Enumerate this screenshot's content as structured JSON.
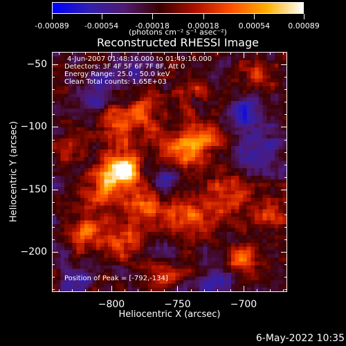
{
  "colorbar": {
    "tick_labels": [
      "-0.00089",
      "-0.00054",
      "-0.00018",
      "0.00018",
      "0.00054",
      "0.00089"
    ],
    "units_label": "(photons cm⁻² s⁻¹ asec⁻²)",
    "colors": [
      "#0000ff",
      "#3020b0",
      "#501a70",
      "#3a0000",
      "#b01000",
      "#ff5000",
      "#ffb000",
      "#ffffff"
    ]
  },
  "header": {
    "title": "Reconstructed RHESSI Image"
  },
  "info": {
    "time_range": "4-Jun-2007 01:48:16.000 to 01:49:16.000",
    "detectors": "Detectors: 3F 4F 5F 6F 7F 8F, Att 0",
    "energy_range": "Energy Range: 25.0 - 50.0 keV",
    "algorithm": "Clean     Total counts: 1.65E+03",
    "peak_position": "Position of Peak = [-792,-134]"
  },
  "footer": {
    "date_stamp": "6-May-2022 10:35"
  },
  "chart_data": {
    "type": "heatmap",
    "title": "Reconstructed RHESSI Image",
    "xlabel": "Heliocentric X (arcsec)",
    "ylabel": "Heliocentric Y (arcsec)",
    "xlim": [
      -845,
      -667
    ],
    "ylim": [
      -232,
      -40
    ],
    "x_ticks": [
      -800,
      -750,
      -700
    ],
    "y_ticks": [
      -50,
      -100,
      -150,
      -200
    ],
    "x_tick_labels": [
      "−800",
      "−750",
      "−700"
    ],
    "y_tick_labels": [
      "−50",
      "−100",
      "−150",
      "−200"
    ],
    "value_range": [
      -0.00089,
      0.00089
    ],
    "peak": {
      "x": -792,
      "y": -134
    },
    "bright_regions": [
      {
        "x": -792,
        "y": -134,
        "amp": 1.0,
        "sigma": 9
      },
      {
        "x": -805,
        "y": -148,
        "amp": 0.55,
        "sigma": 12
      },
      {
        "x": -776,
        "y": -160,
        "amp": 0.45,
        "sigma": 10
      },
      {
        "x": -750,
        "y": -118,
        "amp": 0.45,
        "sigma": 14
      },
      {
        "x": -730,
        "y": -110,
        "amp": 0.55,
        "sigma": 10
      },
      {
        "x": -795,
        "y": -100,
        "amp": 0.45,
        "sigma": 12
      },
      {
        "x": -775,
        "y": -85,
        "amp": 0.35,
        "sigma": 10
      },
      {
        "x": -820,
        "y": -185,
        "amp": 0.45,
        "sigma": 10
      },
      {
        "x": -790,
        "y": -190,
        "amp": 0.45,
        "sigma": 12
      },
      {
        "x": -745,
        "y": -175,
        "amp": 0.45,
        "sigma": 14
      },
      {
        "x": -710,
        "y": -155,
        "amp": 0.4,
        "sigma": 12
      },
      {
        "x": -700,
        "y": -205,
        "amp": 0.45,
        "sigma": 10
      },
      {
        "x": -680,
        "y": -170,
        "amp": 0.35,
        "sigma": 8
      },
      {
        "x": -835,
        "y": -120,
        "amp": 0.4,
        "sigma": 8
      },
      {
        "x": -760,
        "y": -215,
        "amp": 0.35,
        "sigma": 10
      },
      {
        "x": -690,
        "y": -60,
        "amp": 0.3,
        "sigma": 9
      },
      {
        "x": -740,
        "y": -70,
        "amp": 0.3,
        "sigma": 10
      }
    ],
    "dark_regions": [
      {
        "x": -760,
        "y": -140,
        "amp": 0.5,
        "sigma": 9
      },
      {
        "x": -688,
        "y": -120,
        "amp": 0.45,
        "sigma": 11
      },
      {
        "x": -810,
        "y": -70,
        "amp": 0.35,
        "sigma": 10
      },
      {
        "x": -760,
        "y": -200,
        "amp": 0.4,
        "sigma": 10
      },
      {
        "x": -700,
        "y": -90,
        "amp": 0.4,
        "sigma": 10
      },
      {
        "x": -830,
        "y": -225,
        "amp": 0.35,
        "sigma": 9
      },
      {
        "x": -720,
        "y": -225,
        "amp": 0.4,
        "sigma": 8
      },
      {
        "x": -780,
        "y": -55,
        "amp": 0.3,
        "sigma": 9
      }
    ]
  }
}
